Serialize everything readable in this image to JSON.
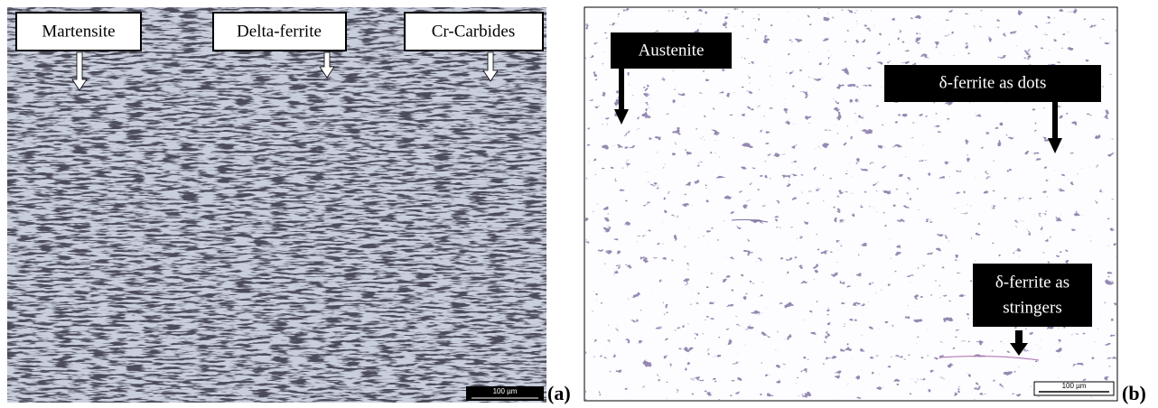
{
  "panels": [
    {
      "label": "(a)",
      "annotations": [
        {
          "lines": [
            "Martensite"
          ]
        },
        {
          "lines": [
            "Delta-ferrite"
          ]
        },
        {
          "lines": [
            "Cr-Carbides"
          ]
        }
      ],
      "scale_bar": "100 µm"
    },
    {
      "label": "(b)",
      "annotations": [
        {
          "lines": [
            "Austenite"
          ]
        },
        {
          "lines": [
            "δ-ferrite as dots"
          ]
        },
        {
          "lines": [
            "δ-ferrite as",
            "stringers"
          ]
        }
      ],
      "scale_bar": "100 µm"
    }
  ]
}
